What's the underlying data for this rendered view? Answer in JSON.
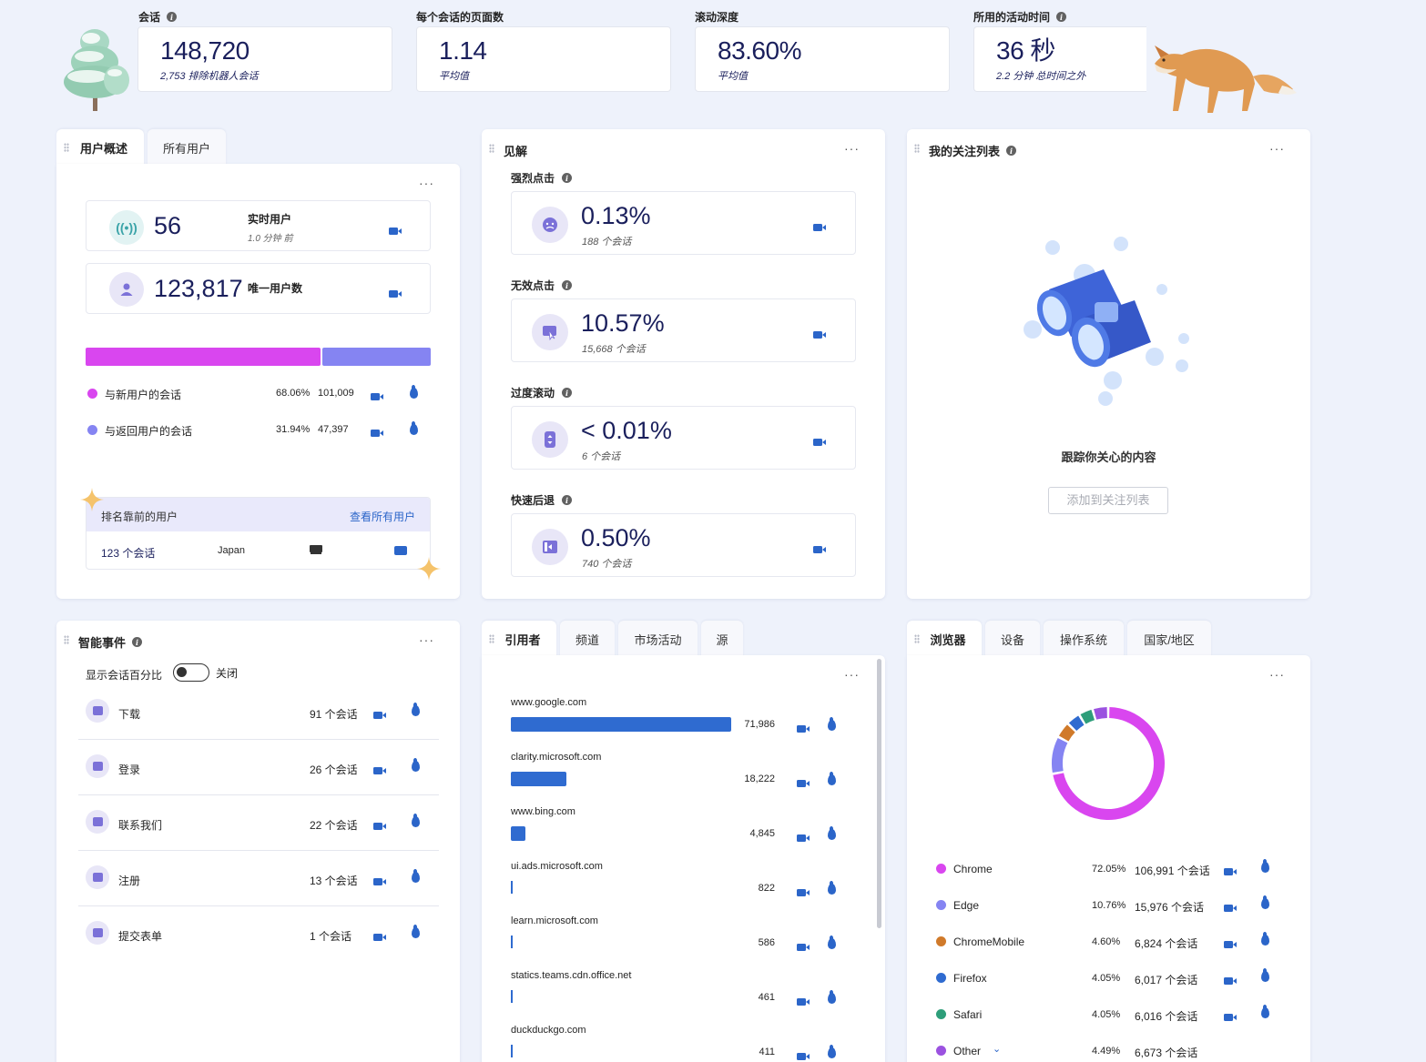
{
  "metrics": [
    {
      "label": "会话",
      "has_info": true,
      "value": "148,720",
      "sub": "2,753 排除机器人会话"
    },
    {
      "label": "每个会话的页面数",
      "has_info": false,
      "value": "1.14",
      "sub": "平均值"
    },
    {
      "label": "滚动深度",
      "has_info": false,
      "value": "83.60%",
      "sub": "平均值"
    },
    {
      "label": "所用的活动时间",
      "has_info": true,
      "value": "36 秒",
      "sub": "2.2 分钟 总时间之外"
    }
  ],
  "user_overview": {
    "tab_active": "用户概述",
    "tab_other": "所有用户",
    "live_value": "56",
    "live_label": "实时用户",
    "live_sub": "1.0 分钟 前",
    "unique_value": "123,817",
    "unique_label": "唯一用户数",
    "split": {
      "new_fraction": 0.6806,
      "colors": {
        "new": "#d946ef",
        "returning": "#8584f2"
      }
    },
    "rows": [
      {
        "label": "与新用户的会话",
        "pct": "68.06%",
        "count": "101,009",
        "color": "#d946ef"
      },
      {
        "label": "与返回用户的会话",
        "pct": "31.94%",
        "count": "47,397",
        "color": "#8584f2"
      }
    ],
    "top_users": {
      "title": "排名靠前的用户",
      "link": "查看所有用户",
      "row": {
        "sessions": "123 个会话",
        "country": "Japan"
      }
    }
  },
  "insights": {
    "title": "见解",
    "items": [
      {
        "label": "强烈点击",
        "value": "0.13%",
        "sub": "188 个会话",
        "icon": "angry-face-icon"
      },
      {
        "label": "无效点击",
        "value": "10.57%",
        "sub": "15,668 个会话",
        "icon": "cursor-click-icon"
      },
      {
        "label": "过度滚动",
        "value": "< 0.01%",
        "sub": "6 个会话",
        "icon": "scroll-icon"
      },
      {
        "label": "快速后退",
        "value": "0.50%",
        "sub": "740 个会话",
        "icon": "back-arrow-icon"
      }
    ]
  },
  "watchlist": {
    "title": "我的关注列表",
    "empty_text": "跟踪你关心的内容",
    "button": "添加到关注列表"
  },
  "smart_events": {
    "title": "智能事件",
    "toggle_label": "显示会话百分比",
    "toggle_state": "关闭",
    "items": [
      {
        "label": "下载",
        "count": "91 个会话"
      },
      {
        "label": "登录",
        "count": "26 个会话"
      },
      {
        "label": "联系我们",
        "count": "22 个会话"
      },
      {
        "label": "注册",
        "count": "13 个会话"
      },
      {
        "label": "提交表单",
        "count": "1 个会话"
      }
    ]
  },
  "referrers": {
    "tabs": [
      "引用者",
      "频道",
      "市场活动",
      "源"
    ],
    "items": [
      {
        "domain": "www.google.com",
        "count": "71,986",
        "value": 71986
      },
      {
        "domain": "clarity.microsoft.com",
        "count": "18,222",
        "value": 18222
      },
      {
        "domain": "www.bing.com",
        "count": "4,845",
        "value": 4845
      },
      {
        "domain": "ui.ads.microsoft.com",
        "count": "822",
        "value": 822
      },
      {
        "domain": "learn.microsoft.com",
        "count": "586",
        "value": 586
      },
      {
        "domain": "statics.teams.cdn.office.net",
        "count": "461",
        "value": 461
      },
      {
        "domain": "duckduckgo.com",
        "count": "411",
        "value": 411
      }
    ]
  },
  "browsers": {
    "tabs": [
      "浏览器",
      "设备",
      "操作系统",
      "国家/地区"
    ],
    "items": [
      {
        "name": "Chrome",
        "pct": "72.05%",
        "sessions": "106,991 个会话",
        "color": "#d946ef",
        "value": 72.05
      },
      {
        "name": "Edge",
        "pct": "10.76%",
        "sessions": "15,976 个会话",
        "color": "#8584f2",
        "value": 10.76
      },
      {
        "name": "ChromeMobile",
        "pct": "4.60%",
        "sessions": "6,824 个会话",
        "color": "#d07a2a",
        "value": 4.6
      },
      {
        "name": "Firefox",
        "pct": "4.05%",
        "sessions": "6,017 个会话",
        "color": "#2f6bd0",
        "value": 4.05
      },
      {
        "name": "Safari",
        "pct": "4.05%",
        "sessions": "6,016 个会话",
        "color": "#2e9e7a",
        "value": 4.05
      },
      {
        "name": "Other",
        "pct": "4.49%",
        "sessions": "6,673 个会话",
        "color": "#9b52e0",
        "value": 4.49
      }
    ]
  }
}
